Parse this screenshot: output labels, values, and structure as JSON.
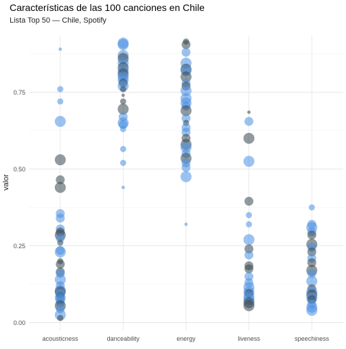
{
  "chart_data": {
    "type": "scatter",
    "title": "Características de las 100 canciones en Chile",
    "subtitle": "Lista Top 50 — Chile, Spotify",
    "ylabel": "valor",
    "xlabel": "",
    "ylim": [
      -0.01,
      0.93
    ],
    "grid": true,
    "legend": "none",
    "categories": [
      "acousticness",
      "danceability",
      "energy",
      "liveness",
      "speechiness"
    ],
    "y_ticks": [
      0,
      0.25,
      0.5,
      0.75
    ],
    "y_tick_labels": [
      "0.00",
      "0.25",
      "0.50",
      "0.75"
    ],
    "colors": {
      "dark": "#37474F",
      "light": "#4A90E2"
    },
    "series": [
      {
        "name": "acousticness",
        "values": [
          0.89,
          0.76,
          0.72,
          0.655,
          0.53,
          0.465,
          0.44,
          0.355,
          0.34,
          0.305,
          0.295,
          0.285,
          0.275,
          0.26,
          0.235,
          0.23,
          0.2,
          0.19,
          0.165,
          0.16,
          0.14,
          0.12,
          0.105,
          0.1,
          0.095,
          0.085,
          0.08,
          0.075,
          0.065,
          0.055,
          0.045,
          0.025,
          0.015
        ],
        "sizes": [
          1,
          2,
          2,
          4,
          4,
          3,
          4,
          3,
          3,
          3,
          3,
          4,
          3,
          2,
          3,
          4,
          2,
          3,
          3,
          3,
          4,
          3,
          4,
          4,
          3,
          3,
          4,
          3,
          3,
          4,
          3,
          4,
          2
        ],
        "shades": [
          1,
          1,
          1,
          1,
          0,
          0,
          0,
          1,
          1,
          1,
          0,
          0,
          1,
          0,
          1,
          1,
          0,
          0,
          0,
          1,
          1,
          1,
          1,
          0,
          1,
          0,
          1,
          1,
          1,
          0,
          1,
          1,
          0
        ]
      },
      {
        "name": "danceability",
        "values": [
          0.91,
          0.905,
          0.87,
          0.86,
          0.845,
          0.83,
          0.82,
          0.81,
          0.8,
          0.79,
          0.78,
          0.77,
          0.76,
          0.74,
          0.72,
          0.695,
          0.67,
          0.65,
          0.645,
          0.63,
          0.565,
          0.52,
          0.44
        ],
        "sizes": [
          4,
          4,
          4,
          4,
          4,
          4,
          4,
          4,
          4,
          4,
          3,
          4,
          2,
          1,
          2,
          4,
          3,
          4,
          3,
          2,
          2,
          2,
          1
        ],
        "shades": [
          1,
          1,
          1,
          0,
          1,
          0,
          1,
          0,
          1,
          1,
          0,
          1,
          0,
          0,
          0,
          0,
          1,
          1,
          1,
          1,
          1,
          1,
          1
        ]
      },
      {
        "name": "energy",
        "values": [
          0.915,
          0.905,
          0.88,
          0.845,
          0.825,
          0.82,
          0.8,
          0.78,
          0.77,
          0.755,
          0.73,
          0.715,
          0.705,
          0.69,
          0.665,
          0.65,
          0.635,
          0.62,
          0.6,
          0.58,
          0.57,
          0.55,
          0.535,
          0.52,
          0.505,
          0.475,
          0.32
        ],
        "sizes": [
          2,
          3,
          3,
          4,
          4,
          4,
          4,
          3,
          3,
          4,
          4,
          4,
          3,
          4,
          3,
          2,
          3,
          3,
          3,
          4,
          4,
          3,
          4,
          3,
          3,
          4,
          1
        ],
        "shades": [
          0,
          0,
          1,
          1,
          0,
          1,
          0,
          1,
          0,
          1,
          1,
          1,
          1,
          0,
          1,
          0,
          1,
          1,
          0,
          0,
          1,
          1,
          0,
          1,
          1,
          1,
          1
        ]
      },
      {
        "name": "liveness",
        "values": [
          0.685,
          0.655,
          0.6,
          0.525,
          0.395,
          0.35,
          0.32,
          0.27,
          0.24,
          0.22,
          0.185,
          0.175,
          0.15,
          0.13,
          0.115,
          0.1,
          0.095,
          0.085,
          0.075,
          0.065,
          0.055
        ],
        "sizes": [
          1,
          3,
          4,
          4,
          3,
          2,
          2,
          4,
          3,
          3,
          3,
          3,
          3,
          3,
          4,
          4,
          3,
          4,
          4,
          4,
          4
        ],
        "shades": [
          0,
          1,
          0,
          1,
          0,
          1,
          1,
          1,
          0,
          1,
          0,
          0,
          1,
          1,
          1,
          1,
          0,
          1,
          1,
          0,
          0
        ]
      },
      {
        "name": "speechiness",
        "values": [
          0.375,
          0.32,
          0.31,
          0.295,
          0.285,
          0.255,
          0.245,
          0.23,
          0.21,
          0.195,
          0.17,
          0.16,
          0.135,
          0.11,
          0.1,
          0.09,
          0.08,
          0.075,
          0.06,
          0.05,
          0.04
        ],
        "sizes": [
          2,
          3,
          4,
          3,
          3,
          4,
          3,
          3,
          3,
          3,
          4,
          3,
          4,
          3,
          4,
          4,
          4,
          3,
          3,
          4,
          4
        ],
        "shades": [
          1,
          1,
          1,
          1,
          0,
          0,
          1,
          0,
          1,
          0,
          0,
          1,
          1,
          0,
          1,
          0,
          1,
          0,
          1,
          1,
          1
        ]
      }
    ]
  }
}
